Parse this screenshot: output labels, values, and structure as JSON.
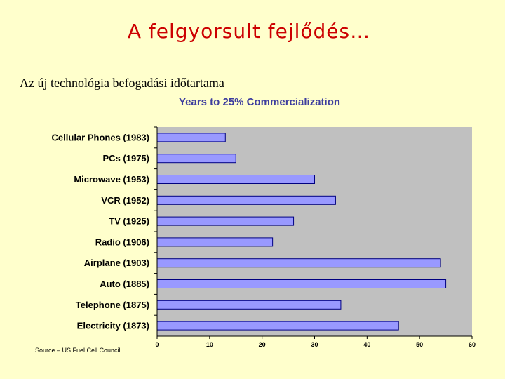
{
  "slide": {
    "title": "A felgyorsult fejlődés…",
    "subtitle": "Az új technológia befogadási időtartama",
    "source": "Source – US Fuel Cell Council"
  },
  "colors": {
    "background": "#ffffcc",
    "title": "#cc0000",
    "plot_background": "#c0c0c0",
    "bar_fill": "#9999ff",
    "bar_stroke": "#000080",
    "chart_title": "#3d3d9e"
  },
  "chart_data": {
    "type": "bar",
    "orientation": "horizontal",
    "title": "Years to 25% Commercialization",
    "xlabel": "",
    "ylabel": "",
    "xlim": [
      0,
      60
    ],
    "xticks": [
      0,
      10,
      20,
      30,
      40,
      50,
      60
    ],
    "grid": false,
    "categories": [
      "Cellular Phones (1983)",
      "PCs (1975)",
      "Microwave (1953)",
      "VCR (1952)",
      "TV (1925)",
      "Radio (1906)",
      "Airplane (1903)",
      "Auto (1885)",
      "Telephone (1875)",
      "Electricity (1873)"
    ],
    "values": [
      13,
      15,
      30,
      34,
      26,
      22,
      54,
      55,
      35,
      46
    ]
  }
}
